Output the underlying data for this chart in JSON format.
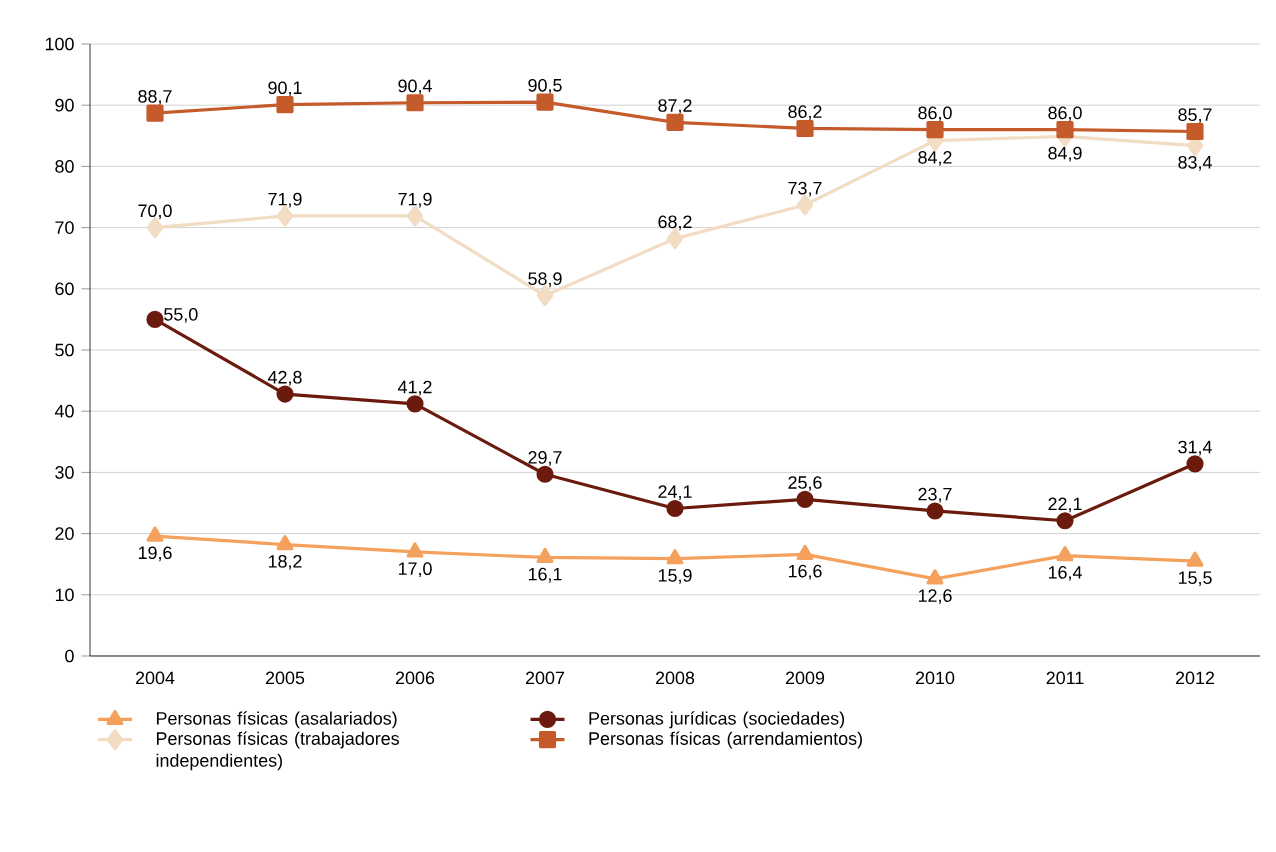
{
  "chart_data": {
    "type": "line",
    "categories": [
      "2004",
      "2005",
      "2006",
      "2007",
      "2008",
      "2009",
      "2010",
      "2011",
      "2012"
    ],
    "ylim": [
      0,
      100
    ],
    "yticks": [
      0,
      10,
      20,
      30,
      40,
      50,
      60,
      70,
      80,
      90,
      100
    ],
    "grid": "y",
    "legend": "bottom",
    "line_style": "solid",
    "series": [
      {
        "name": "Personas físicas (asalariados)",
        "color": "#f4a15d",
        "marker": "triangle",
        "values": [
          19.6,
          18.2,
          17.0,
          16.1,
          15.9,
          16.6,
          12.6,
          16.4,
          15.5
        ],
        "value_labels": [
          "19,6",
          "18,2",
          "17,0",
          "16,1",
          "15,9",
          "16,6",
          "12,6",
          "16,4",
          "15,5"
        ]
      },
      {
        "name": "Personas jurídicas (sociedades)",
        "color": "#6b1b0e",
        "marker": "circle",
        "values": [
          55.0,
          42.8,
          41.2,
          29.7,
          24.1,
          25.6,
          23.7,
          22.1,
          31.4
        ],
        "value_labels": [
          "55,0",
          "42,8",
          "41,2",
          "29,7",
          "24,1",
          "25,6",
          "23,7",
          "22,1",
          "31,4"
        ]
      },
      {
        "name": "Personas físicas (trabajadores independientes)",
        "color": "#f2dcc4",
        "marker": "diamond",
        "values": [
          70.0,
          71.9,
          71.9,
          58.9,
          68.2,
          73.7,
          84.2,
          84.9,
          83.4
        ],
        "value_labels": [
          "70,0",
          "71,9",
          "71,9",
          "58,9",
          "68,2",
          "73,7",
          "84,2",
          "84,9",
          "83,4"
        ]
      },
      {
        "name": "Personas físicas (arrendamientos)",
        "color": "#c55a2b",
        "marker": "square",
        "values": [
          88.7,
          90.1,
          90.4,
          90.5,
          87.2,
          86.2,
          86.0,
          86.0,
          85.7
        ],
        "value_labels": [
          "88,7",
          "90,1",
          "90,4",
          "90,5",
          "87,2",
          "86,2",
          "86,0",
          "86,0",
          "85,7"
        ]
      }
    ]
  }
}
